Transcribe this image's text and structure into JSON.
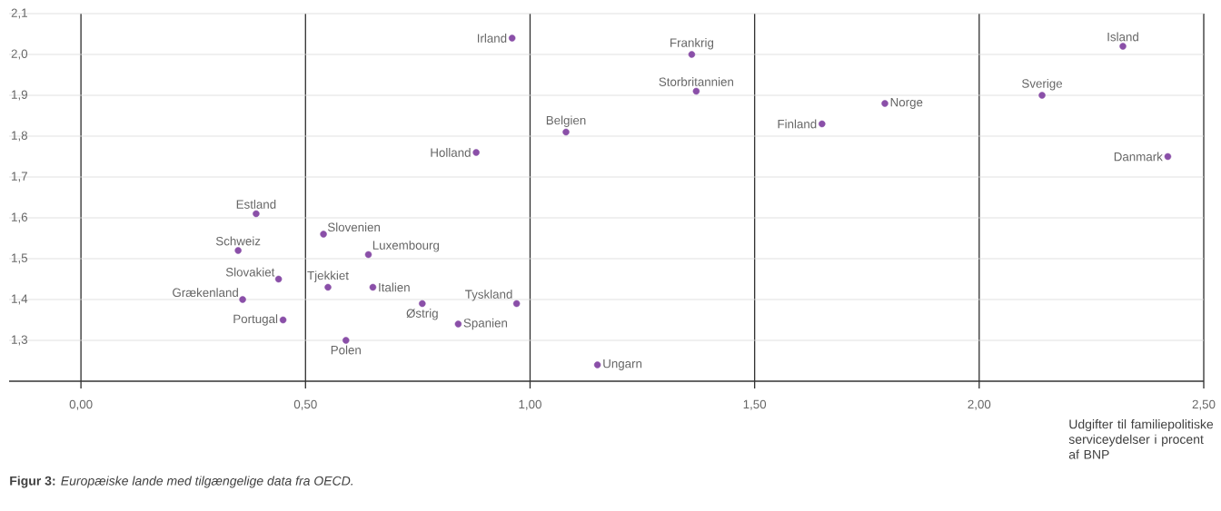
{
  "chart_data": {
    "type": "scatter",
    "xlabel": "Udgifter til familiepolitiske serviceydelser i procent af BNP",
    "x": [
      0.96,
      1.36,
      1.37,
      1.08,
      0.88,
      1.79,
      1.65,
      2.32,
      2.14,
      2.42,
      0.39,
      0.54,
      0.35,
      0.64,
      0.44,
      0.55,
      0.65,
      0.36,
      0.76,
      0.97,
      0.45,
      0.84,
      0.59,
      1.15
    ],
    "values": [
      2.04,
      2.0,
      1.91,
      1.81,
      1.76,
      1.88,
      1.83,
      2.02,
      1.9,
      1.75,
      1.61,
      1.56,
      1.52,
      1.51,
      1.45,
      1.43,
      1.43,
      1.4,
      1.39,
      1.39,
      1.35,
      1.34,
      1.3,
      1.24
    ],
    "color": "#8a4fa8",
    "marker": "circle",
    "grid": true,
    "xlim": [
      -0.16,
      2.5
    ],
    "ylim": [
      1.2,
      2.1
    ],
    "xticks": [
      {
        "value": 0,
        "label": "0,00"
      },
      {
        "value": 0.5,
        "label": "0,50"
      },
      {
        "value": 1,
        "label": "1,00"
      },
      {
        "value": 1.5,
        "label": "1,50"
      },
      {
        "value": 2,
        "label": "2,00"
      },
      {
        "value": 2.5,
        "label": "2,50"
      }
    ],
    "yticks": [
      {
        "value": 1.3,
        "label": "1,3"
      },
      {
        "value": 1.4,
        "label": "1,4"
      },
      {
        "value": 1.5,
        "label": "1,5"
      },
      {
        "value": 1.6,
        "label": "1,6"
      },
      {
        "value": 1.7,
        "label": "1,7"
      },
      {
        "value": 1.8,
        "label": "1,8"
      },
      {
        "value": 1.9,
        "label": "1,9"
      },
      {
        "value": 2.0,
        "label": "2,0"
      },
      {
        "value": 2.1,
        "label": "2,1"
      }
    ],
    "annotations": [
      {
        "text": "Irland",
        "x": 0.96,
        "y": 2.04
      },
      {
        "text": "Frankrig",
        "x": 1.36,
        "y": 2.0
      },
      {
        "text": "Storbritannien",
        "x": 1.37,
        "y": 1.91
      },
      {
        "text": "Belgien",
        "x": 1.08,
        "y": 1.81
      },
      {
        "text": "Holland",
        "x": 0.88,
        "y": 1.76
      },
      {
        "text": "Norge",
        "x": 1.79,
        "y": 1.88
      },
      {
        "text": "Finland",
        "x": 1.65,
        "y": 1.83
      },
      {
        "text": "Island",
        "x": 2.32,
        "y": 2.02
      },
      {
        "text": "Sverige",
        "x": 2.14,
        "y": 1.9
      },
      {
        "text": "Danmark",
        "x": 2.42,
        "y": 1.75
      },
      {
        "text": "Estland",
        "x": 0.39,
        "y": 1.61
      },
      {
        "text": "Slovenien",
        "x": 0.54,
        "y": 1.56
      },
      {
        "text": "Schweiz",
        "x": 0.35,
        "y": 1.52
      },
      {
        "text": "Luxembourg",
        "x": 0.64,
        "y": 1.51
      },
      {
        "text": "Slovakiet",
        "x": 0.44,
        "y": 1.45
      },
      {
        "text": "Tjekkiet",
        "x": 0.55,
        "y": 1.43
      },
      {
        "text": "Italien",
        "x": 0.65,
        "y": 1.43
      },
      {
        "text": "Grækenland",
        "x": 0.36,
        "y": 1.4
      },
      {
        "text": "Østrig",
        "x": 0.76,
        "y": 1.39
      },
      {
        "text": "Tyskland",
        "x": 0.97,
        "y": 1.39
      },
      {
        "text": "Portugal",
        "x": 0.45,
        "y": 1.35
      },
      {
        "text": "Spanien",
        "x": 0.84,
        "y": 1.34
      },
      {
        "text": "Polen",
        "x": 0.59,
        "y": 1.3
      },
      {
        "text": "Ungarn",
        "x": 1.15,
        "y": 1.24
      },
      "**Figur 3:** *Europæiske lande med tilgængelige data fra OECD.*"
    ]
  }
}
